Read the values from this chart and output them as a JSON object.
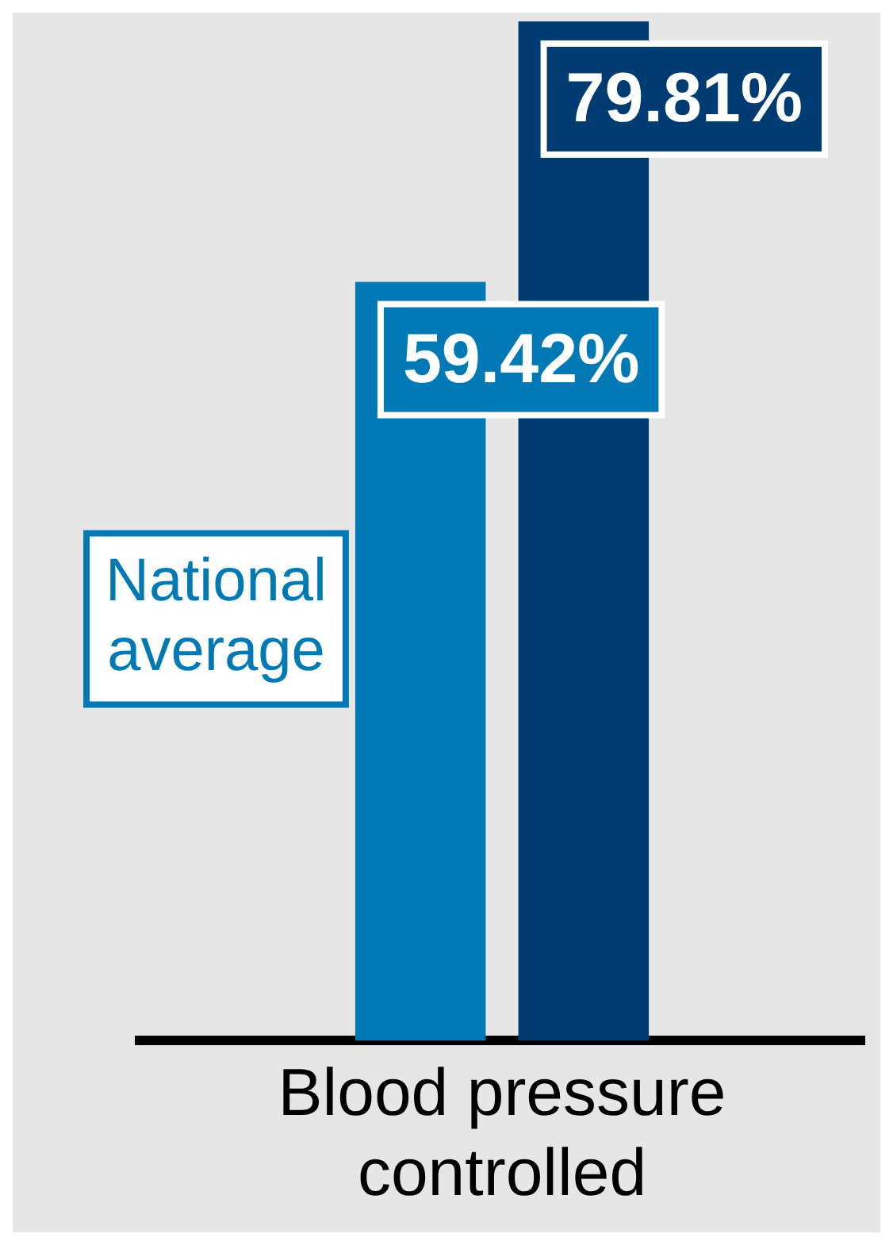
{
  "chart_data": {
    "type": "bar",
    "categories": [
      "Blood pressure controlled"
    ],
    "series": [
      {
        "name": "National average",
        "color": "#0079b5",
        "values": [
          59.42
        ],
        "value_labels": [
          "59.42%"
        ]
      },
      {
        "color": "#003b71",
        "values": [
          79.81
        ],
        "value_labels": [
          "79.81%"
        ]
      }
    ],
    "legend": false,
    "grid": false
  }
}
